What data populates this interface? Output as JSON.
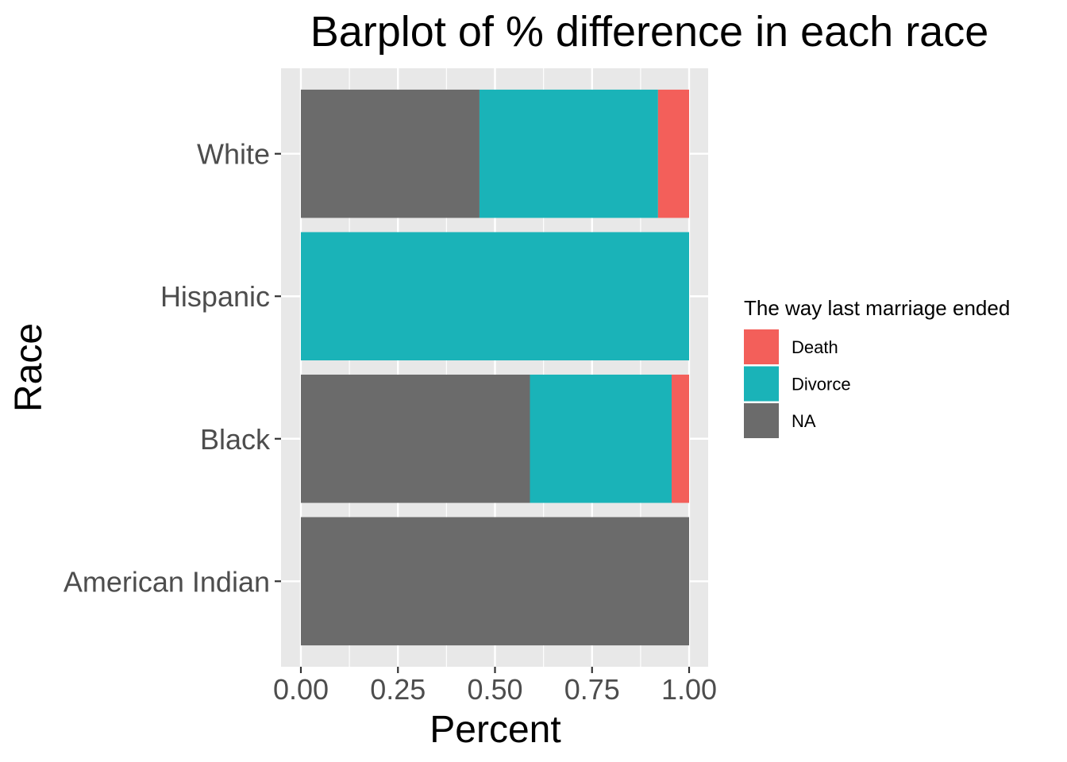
{
  "chart_data": {
    "type": "bar",
    "orientation": "horizontal",
    "stacked": true,
    "title": "Barplot of % difference in each race",
    "xlabel": "Percent",
    "ylabel": "Race",
    "xlim": [
      0,
      1
    ],
    "x_ticks": [
      "0.00",
      "0.25",
      "0.50",
      "0.75",
      "1.00"
    ],
    "categories": [
      "White",
      "Hispanic",
      "Black",
      "American Indian"
    ],
    "series": [
      {
        "name": "NA",
        "color": "#6b6b6b",
        "values": [
          0.46,
          0.0,
          0.59,
          1.0
        ]
      },
      {
        "name": "Divorce",
        "color": "#1ab3b8",
        "values": [
          0.46,
          1.0,
          0.365,
          0.0
        ]
      },
      {
        "name": "Death",
        "color": "#f35f5a",
        "values": [
          0.08,
          0.0,
          0.045,
          0.0
        ]
      }
    ],
    "legend": {
      "title": "The way last marriage ended",
      "placement": "right",
      "entries": [
        "Death",
        "Divorce",
        "NA"
      ]
    },
    "grid": true,
    "background": "#e8e8e8"
  }
}
